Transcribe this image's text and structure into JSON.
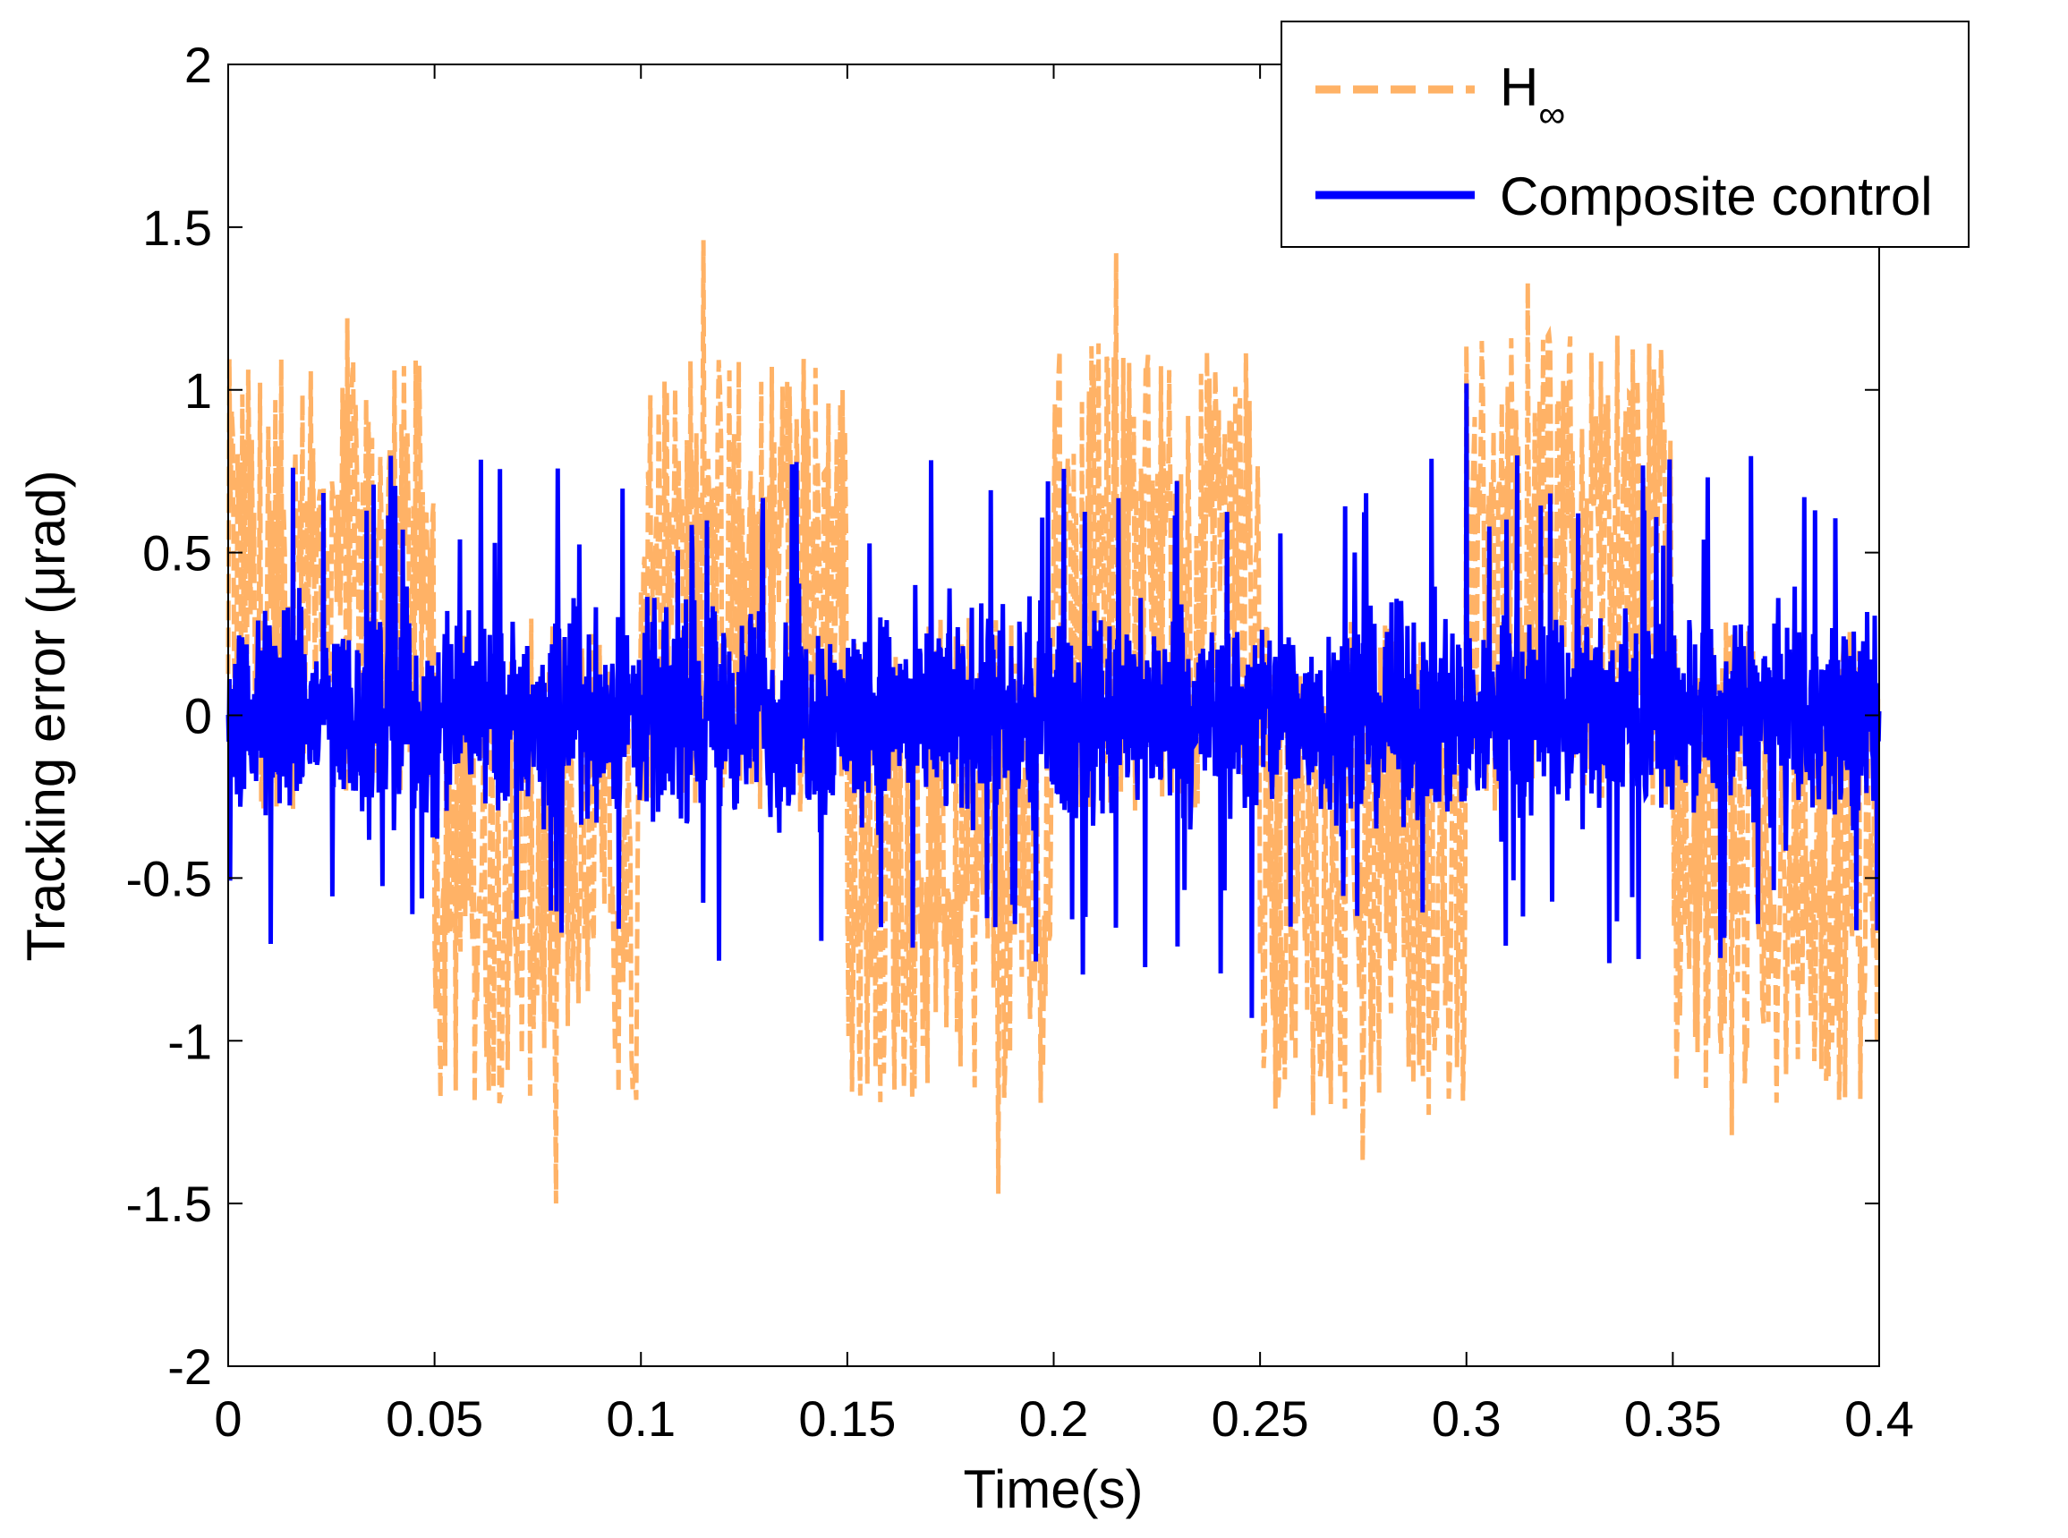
{
  "chart_data": {
    "type": "line",
    "title": "",
    "xlabel": "Time(s)",
    "ylabel_parts": {
      "before": "Tracking error (",
      "mu": "μ",
      "after": "rad)"
    },
    "xlim": [
      0,
      0.4
    ],
    "ylim": [
      -2,
      2
    ],
    "xticks": [
      0,
      0.05,
      0.1,
      0.15,
      0.2,
      0.25,
      0.3,
      0.35,
      0.4
    ],
    "xtick_labels": [
      "0",
      "0.05",
      "0.1",
      "0.15",
      "0.2",
      "0.25",
      "0.3",
      "0.35",
      "0.4"
    ],
    "yticks": [
      2,
      1.5,
      1,
      0.5,
      0,
      -0.5,
      -1,
      -1.5,
      -2
    ],
    "ytick_labels": [
      "2",
      "1.5",
      "1",
      "0.5",
      "0",
      "-0.5",
      "-1",
      "-1.5",
      "-2"
    ],
    "grid": false,
    "legend_position": "top-right",
    "series": [
      {
        "name": "H∞",
        "name_base": "H",
        "name_sub": "∞",
        "color": "#FFB266",
        "style": "dashed",
        "description": "square-wave biased noise, period 0.1 s",
        "segments": [
          {
            "t_start": 0.0,
            "t_end": 0.05,
            "mean": 0.6,
            "upper_envelope": 1.1,
            "lower_envelope": -0.3,
            "max_peak": 1.22
          },
          {
            "t_start": 0.05,
            "t_end": 0.1,
            "mean": -0.6,
            "upper_envelope": 0.3,
            "lower_envelope": -1.2,
            "min_peak": -1.5
          },
          {
            "t_start": 0.1,
            "t_end": 0.15,
            "mean": 0.6,
            "upper_envelope": 1.15,
            "lower_envelope": -0.3,
            "max_peak": 1.46
          },
          {
            "t_start": 0.15,
            "t_end": 0.2,
            "mean": -0.6,
            "upper_envelope": 0.3,
            "lower_envelope": -1.2,
            "min_peak": -1.47
          },
          {
            "t_start": 0.2,
            "t_end": 0.25,
            "mean": 0.6,
            "upper_envelope": 1.15,
            "lower_envelope": -0.3,
            "max_peak": 1.42
          },
          {
            "t_start": 0.25,
            "t_end": 0.3,
            "mean": -0.6,
            "upper_envelope": 0.3,
            "lower_envelope": -1.25,
            "min_peak": -1.37
          },
          {
            "t_start": 0.3,
            "t_end": 0.35,
            "mean": 0.6,
            "upper_envelope": 1.2,
            "lower_envelope": -0.3,
            "max_peak": 1.33
          },
          {
            "t_start": 0.35,
            "t_end": 0.4,
            "mean": -0.6,
            "upper_envelope": 0.3,
            "lower_envelope": -1.2,
            "min_peak": -1.29
          }
        ]
      },
      {
        "name": "Composite control",
        "color": "#0000FF",
        "style": "solid",
        "description": "zero-mean noise over full range",
        "t_start": 0.0,
        "t_end": 0.4,
        "mean": 0.0,
        "upper_envelope": 0.45,
        "lower_envelope": -0.45,
        "max_peak": 1.02,
        "min_peak": -0.93
      }
    ]
  }
}
